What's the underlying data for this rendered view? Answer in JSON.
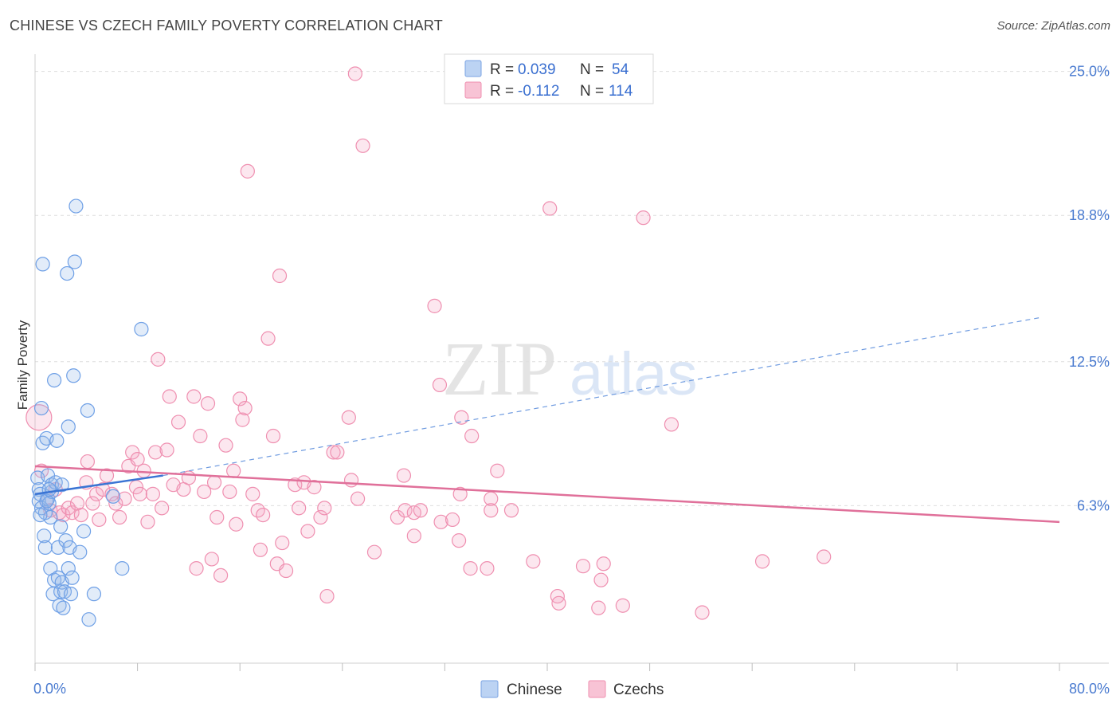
{
  "title": "CHINESE VS CZECH FAMILY POVERTY CORRELATION CHART",
  "source": "Source: ZipAtlas.com",
  "watermark": {
    "zip": "ZIP",
    "atlas": "atlas"
  },
  "legend": {
    "r_label": "R =",
    "n_label": "N =",
    "rows": [
      {
        "r": "0.039",
        "n": "54",
        "color": "#6fa0e6"
      },
      {
        "r": "-0.112",
        "n": "114",
        "color": "#ef8fb0"
      }
    ]
  },
  "bottom_legend": [
    "Chinese",
    "Czechs"
  ],
  "chart_data": {
    "type": "scatter",
    "title": "CHINESE VS CZECH FAMILY POVERTY CORRELATION CHART",
    "xlabel": "",
    "ylabel": "Family Poverty",
    "xlim": [
      0,
      80
    ],
    "ylim": [
      0,
      25.5
    ],
    "x_tick_labels": [
      "0.0%",
      "80.0%"
    ],
    "y_ticks": [
      6.3,
      12.5,
      18.8,
      25.0
    ],
    "y_tick_labels": [
      "6.3%",
      "12.5%",
      "18.8%",
      "25.0%"
    ],
    "grid": true,
    "legend_position": "top-center",
    "series": [
      {
        "name": "Chinese",
        "color": "#6fa0e6",
        "trend": {
          "x": [
            0,
            10
          ],
          "y": [
            6.8,
            7.6
          ],
          "style": "solid",
          "extended": {
            "x": [
              10,
              78.5
            ],
            "y": [
              7.6,
              14.4
            ],
            "style": "dashed"
          }
        },
        "points": [
          [
            0.2,
            7.5
          ],
          [
            0.3,
            7.0
          ],
          [
            0.3,
            6.5
          ],
          [
            0.4,
            6.8
          ],
          [
            0.5,
            6.2
          ],
          [
            0.5,
            10.5
          ],
          [
            0.6,
            9.0
          ],
          [
            0.6,
            16.7
          ],
          [
            0.7,
            5.0
          ],
          [
            0.8,
            4.5
          ],
          [
            0.8,
            6.0
          ],
          [
            0.9,
            9.2
          ],
          [
            1.0,
            6.6
          ],
          [
            1.0,
            7.6
          ],
          [
            1.1,
            6.4
          ],
          [
            1.2,
            3.6
          ],
          [
            1.2,
            5.8
          ],
          [
            1.3,
            6.9
          ],
          [
            1.3,
            7.2
          ],
          [
            1.4,
            2.5
          ],
          [
            1.5,
            3.1
          ],
          [
            1.5,
            11.7
          ],
          [
            1.6,
            7.3
          ],
          [
            1.7,
            9.1
          ],
          [
            1.8,
            4.5
          ],
          [
            1.8,
            3.2
          ],
          [
            1.9,
            2.0
          ],
          [
            2.0,
            5.4
          ],
          [
            2.0,
            2.6
          ],
          [
            2.1,
            3.0
          ],
          [
            2.1,
            7.2
          ],
          [
            2.2,
            1.9
          ],
          [
            2.3,
            2.6
          ],
          [
            2.4,
            4.8
          ],
          [
            2.5,
            16.3
          ],
          [
            2.6,
            3.6
          ],
          [
            2.6,
            9.7
          ],
          [
            2.7,
            4.5
          ],
          [
            2.8,
            2.5
          ],
          [
            3.0,
            11.9
          ],
          [
            3.1,
            16.8
          ],
          [
            3.2,
            19.2
          ],
          [
            3.5,
            4.3
          ],
          [
            3.8,
            5.2
          ],
          [
            4.1,
            10.4
          ],
          [
            4.2,
            1.4
          ],
          [
            4.6,
            2.5
          ],
          [
            6.1,
            6.7
          ],
          [
            6.8,
            3.6
          ],
          [
            8.3,
            13.9
          ],
          [
            0.4,
            5.9
          ],
          [
            0.9,
            6.5
          ],
          [
            2.9,
            3.2
          ],
          [
            1.1,
            7.0
          ]
        ]
      },
      {
        "name": "Czechs",
        "color": "#ef8fb0",
        "trend": {
          "x": [
            0,
            80
          ],
          "y": [
            8.0,
            5.6
          ],
          "style": "solid"
        },
        "points": [
          [
            0.3,
            10.1
          ],
          [
            0.5,
            7.8
          ],
          [
            0.9,
            6.5
          ],
          [
            1.2,
            6.1
          ],
          [
            1.6,
            7.0
          ],
          [
            1.9,
            6.0
          ],
          [
            2.2,
            5.9
          ],
          [
            2.6,
            6.2
          ],
          [
            2.9,
            6.0
          ],
          [
            3.3,
            6.4
          ],
          [
            3.6,
            5.9
          ],
          [
            4.0,
            7.3
          ],
          [
            4.1,
            8.2
          ],
          [
            4.5,
            6.4
          ],
          [
            4.8,
            6.8
          ],
          [
            5.0,
            5.7
          ],
          [
            5.3,
            7.0
          ],
          [
            5.6,
            7.6
          ],
          [
            6.0,
            6.8
          ],
          [
            6.3,
            6.4
          ],
          [
            6.6,
            5.8
          ],
          [
            7.0,
            6.6
          ],
          [
            7.3,
            8.0
          ],
          [
            7.6,
            8.6
          ],
          [
            7.9,
            7.1
          ],
          [
            8.0,
            8.3
          ],
          [
            8.2,
            6.8
          ],
          [
            8.5,
            7.8
          ],
          [
            8.8,
            5.6
          ],
          [
            9.2,
            6.8
          ],
          [
            9.4,
            8.6
          ],
          [
            9.6,
            12.6
          ],
          [
            9.9,
            6.2
          ],
          [
            10.3,
            8.7
          ],
          [
            10.5,
            11.0
          ],
          [
            10.8,
            7.2
          ],
          [
            11.2,
            9.9
          ],
          [
            11.6,
            7.0
          ],
          [
            12.0,
            7.5
          ],
          [
            12.4,
            11.0
          ],
          [
            12.6,
            3.6
          ],
          [
            12.9,
            9.3
          ],
          [
            13.2,
            6.9
          ],
          [
            13.5,
            10.7
          ],
          [
            13.8,
            4.0
          ],
          [
            14.0,
            7.3
          ],
          [
            14.2,
            5.8
          ],
          [
            14.5,
            3.3
          ],
          [
            14.9,
            8.9
          ],
          [
            15.2,
            6.9
          ],
          [
            15.5,
            7.8
          ],
          [
            15.7,
            5.5
          ],
          [
            16.0,
            10.9
          ],
          [
            16.2,
            10.0
          ],
          [
            16.4,
            10.5
          ],
          [
            16.6,
            20.7
          ],
          [
            17.0,
            6.8
          ],
          [
            17.4,
            6.1
          ],
          [
            17.6,
            4.4
          ],
          [
            17.8,
            5.9
          ],
          [
            18.2,
            13.5
          ],
          [
            18.6,
            9.3
          ],
          [
            18.9,
            3.8
          ],
          [
            19.1,
            16.2
          ],
          [
            19.3,
            4.7
          ],
          [
            19.6,
            3.5
          ],
          [
            20.3,
            7.2
          ],
          [
            20.6,
            6.2
          ],
          [
            21.0,
            7.3
          ],
          [
            21.3,
            5.2
          ],
          [
            21.8,
            7.1
          ],
          [
            22.3,
            5.8
          ],
          [
            22.6,
            6.2
          ],
          [
            22.8,
            2.4
          ],
          [
            23.3,
            8.6
          ],
          [
            23.6,
            8.6
          ],
          [
            24.5,
            10.1
          ],
          [
            24.7,
            7.4
          ],
          [
            25.0,
            24.9
          ],
          [
            25.2,
            6.6
          ],
          [
            25.6,
            21.8
          ],
          [
            26.5,
            4.3
          ],
          [
            28.3,
            5.8
          ],
          [
            28.8,
            7.6
          ],
          [
            28.9,
            6.1
          ],
          [
            29.6,
            6.0
          ],
          [
            29.6,
            5.0
          ],
          [
            30.1,
            6.1
          ],
          [
            31.2,
            14.9
          ],
          [
            31.6,
            11.5
          ],
          [
            31.7,
            5.6
          ],
          [
            32.6,
            5.7
          ],
          [
            33.1,
            4.8
          ],
          [
            33.2,
            6.8
          ],
          [
            33.3,
            10.1
          ],
          [
            34.0,
            3.6
          ],
          [
            34.1,
            9.3
          ],
          [
            35.3,
            3.6
          ],
          [
            35.6,
            6.1
          ],
          [
            35.6,
            6.6
          ],
          [
            36.1,
            7.8
          ],
          [
            37.2,
            6.1
          ],
          [
            38.9,
            3.9
          ],
          [
            40.2,
            19.1
          ],
          [
            40.8,
            2.4
          ],
          [
            40.9,
            2.1
          ],
          [
            42.8,
            3.7
          ],
          [
            44.0,
            1.9
          ],
          [
            44.2,
            3.1
          ],
          [
            44.4,
            3.8
          ],
          [
            45.9,
            2.0
          ],
          [
            47.5,
            18.7
          ],
          [
            49.7,
            9.8
          ],
          [
            52.1,
            1.7
          ],
          [
            56.8,
            3.9
          ],
          [
            61.6,
            4.1
          ]
        ]
      }
    ]
  }
}
